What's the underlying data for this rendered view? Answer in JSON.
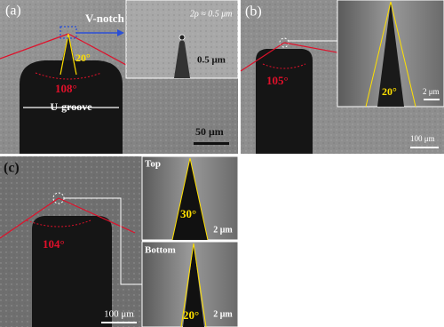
{
  "panels": [
    {
      "label": "(a)",
      "callout": "V-notch",
      "inset_note": "2ρ ≈ 0.5 μm",
      "notch_angle": "20°",
      "inset_scale": "0.5 μm",
      "flank_angle": "108°",
      "groove": "U-groove",
      "scale": "50 μm"
    },
    {
      "label": "(b)",
      "flank_angle": "105°",
      "notch_angle": "20°",
      "inset_scale": "2 μm",
      "scale": "100 μm"
    },
    {
      "label": "(c)",
      "flank_angle": "104°",
      "scale": "100 μm",
      "insets": [
        {
          "label": "Top",
          "notch_angle": "30°",
          "scale": "2 μm"
        },
        {
          "label": "Bottom",
          "notch_angle": "20°",
          "scale": "2 μm"
        }
      ]
    }
  ]
}
